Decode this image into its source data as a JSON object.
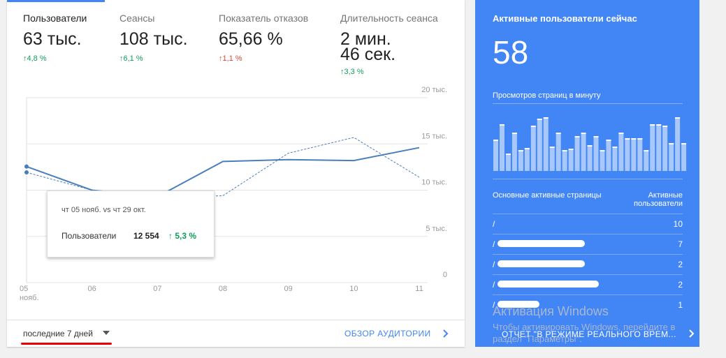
{
  "tabs": [
    {
      "label": "Пользователи",
      "value": "63 тыс.",
      "change": "↑4,8 %",
      "change_color": "#0f9d58"
    },
    {
      "label": "Сеансы",
      "value": "108 тыс.",
      "change": "↑6,1 %",
      "change_color": "#0f9d58"
    },
    {
      "label": "Показатель отказов",
      "value": "65,66 %",
      "change": "↑1,1 %",
      "change_color": "#db4437"
    },
    {
      "label": "Длительность сеанса",
      "value": "2 мин.\n46 сек.",
      "change": "↑3,3 %",
      "change_color": "#0f9d58"
    }
  ],
  "chart_data": {
    "type": "line",
    "x": [
      "05\nнояб.",
      "06",
      "07",
      "08",
      "09",
      "10",
      "11"
    ],
    "series": [
      {
        "color": "#4a7ebb",
        "style": "solid",
        "values": [
          12554,
          10000,
          9300,
          13100,
          13300,
          13200,
          14600
        ]
      },
      {
        "color": "#4a7ebb",
        "style": "dashed",
        "values": [
          11922,
          10000,
          9200,
          9400,
          14000,
          15700,
          11400
        ]
      }
    ],
    "ylim": [
      0,
      20000
    ],
    "yticks": [
      0,
      {
        "value": 5000,
        "label": "5 тыс."
      },
      {
        "value": 10000,
        "label": "10 тыс."
      },
      {
        "value": 15000,
        "label": "15 тыс."
      },
      {
        "value": 20000,
        "label": "20 тыс."
      }
    ],
    "grid": true
  },
  "tooltip": {
    "title": "чт 05 нояб. vs чт 29 окт.",
    "metric": "Пользователи",
    "value": "12 554",
    "change": "↑ 5,3 %"
  },
  "footer": {
    "range": "последние 7 дней",
    "link": "ОБЗОР АУДИТОРИИ"
  },
  "realtime": {
    "title": "Активные пользователи сейчас",
    "value": "58",
    "subtitle": "Просмотров страниц в минуту",
    "pageviews": {
      "type": "bar",
      "color": "#a8c7fa",
      "values": [
        45,
        67,
        25,
        55,
        30,
        33,
        65,
        75,
        77,
        35,
        55,
        30,
        32,
        50,
        55,
        37,
        50,
        30,
        45,
        35,
        55,
        47,
        47,
        47,
        30,
        67,
        67,
        65,
        40,
        77,
        40
      ]
    },
    "table": {
      "headers": [
        "Основные активные страницы",
        "Активные\nпользователи"
      ],
      "rows": [
        [
          "/",
          "10"
        ],
        [
          "/",
          "7"
        ],
        [
          "/",
          "2"
        ],
        [
          "/",
          "2"
        ],
        [
          "/",
          "1"
        ]
      ]
    },
    "link": "ОТЧЕТ \"В РЕЖИМЕ РЕАЛЬНОГО ВРЕМ..."
  },
  "watermark": {
    "title": "Активация Windows",
    "text": "Чтобы активировать Windows, перейдите в раздел \"Параметры\"."
  }
}
